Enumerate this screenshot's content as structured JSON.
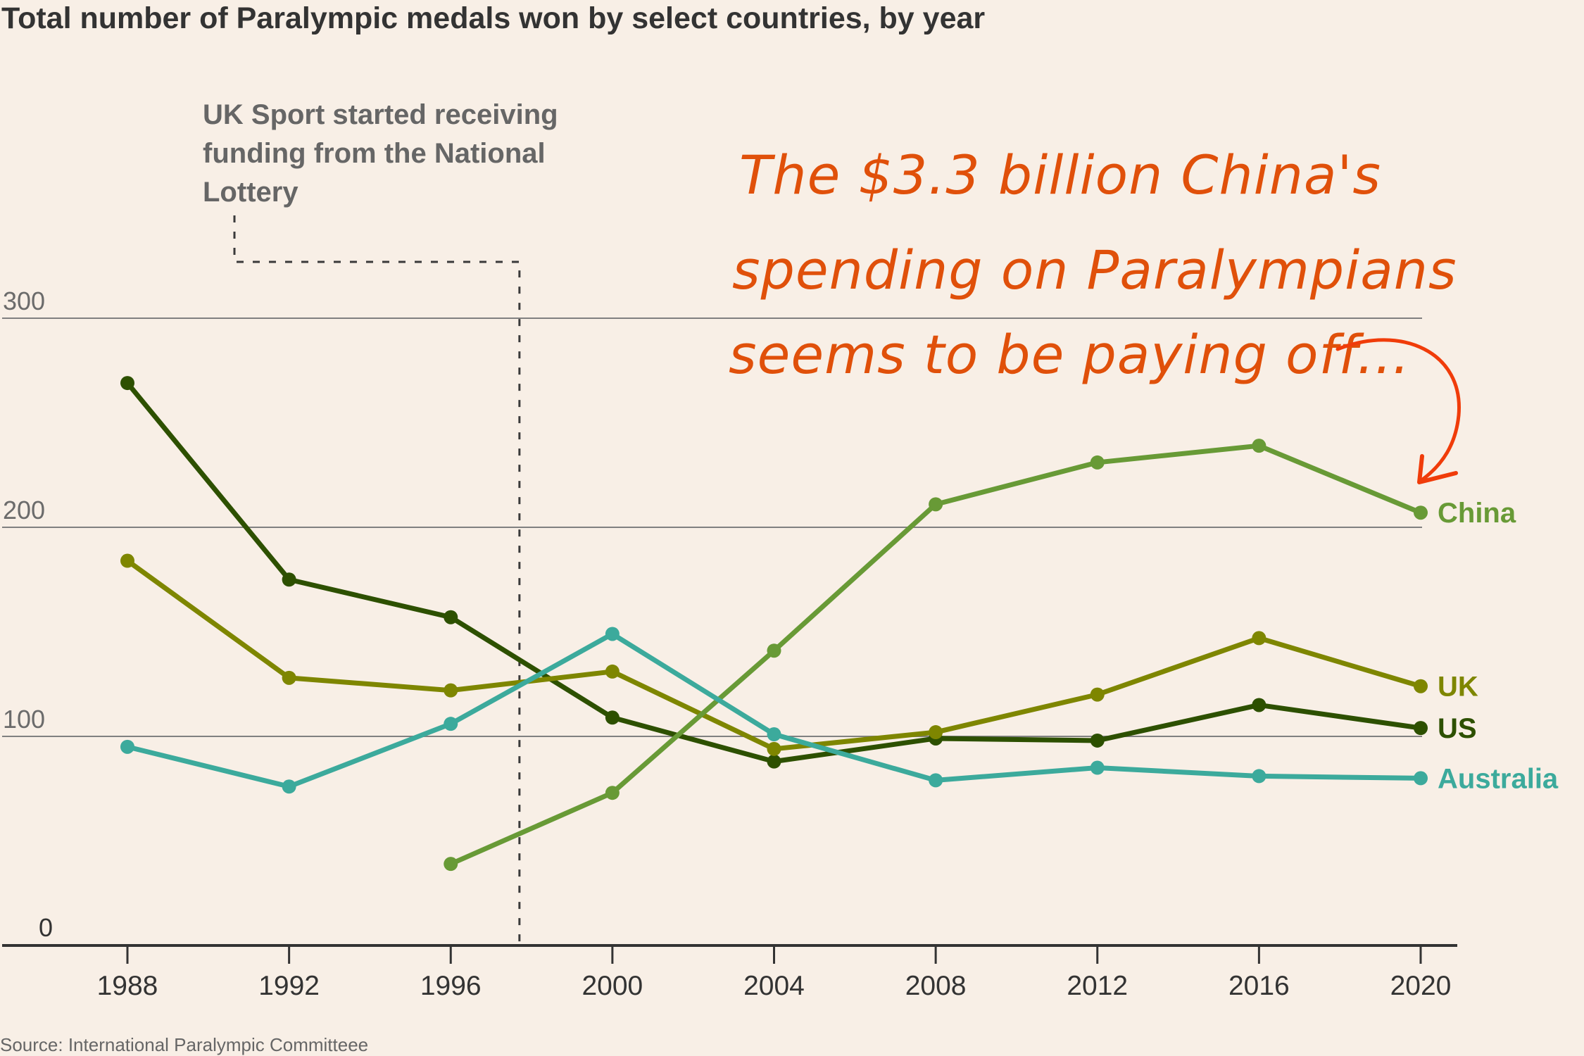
{
  "chart_data": {
    "type": "line",
    "title": "Total number of Paralympic medals won by select countries, by year",
    "xlabel": "",
    "ylabel": "",
    "x": [
      1988,
      1992,
      1996,
      2000,
      2004,
      2008,
      2012,
      2016,
      2020
    ],
    "x_tick_labels": [
      "1988",
      "1992",
      "1996",
      "2000",
      "2004",
      "2008",
      "2012",
      "2016",
      "2020"
    ],
    "y_ticks": [
      0,
      100,
      200,
      300
    ],
    "y_tick_labels": [
      "0",
      "100",
      "200",
      "300"
    ],
    "ylim": [
      0,
      300
    ],
    "grid": true,
    "series": [
      {
        "name": "US",
        "color": "#2d5000",
        "values": [
          269,
          175,
          157,
          109,
          88,
          99,
          98,
          115,
          104
        ]
      },
      {
        "name": "UK",
        "color": "#7e8600",
        "values": [
          184,
          128,
          122,
          131,
          94,
          102,
          120,
          147,
          124
        ]
      },
      {
        "name": "China",
        "color": "#689a36",
        "values": [
          null,
          null,
          39,
          73,
          141,
          211,
          231,
          239,
          207
        ]
      },
      {
        "name": "Australia",
        "color": "#3caa9c",
        "values": [
          95,
          76,
          106,
          149,
          101,
          79,
          85,
          81,
          80
        ]
      }
    ],
    "legend": "direct labels at right end of lines",
    "annotations": {
      "event": {
        "lines": [
          "UK Sport started receiving",
          "funding from the National",
          "Lottery"
        ],
        "x_value": 1997.7
      },
      "callout": {
        "lines": [
          "The $3.3 billion China's",
          "spending on Paralympians",
          "seems to be paying off..."
        ],
        "color": "#e0500a",
        "target_series": "China"
      }
    },
    "source": "Source: International Paralympic Committeee"
  }
}
